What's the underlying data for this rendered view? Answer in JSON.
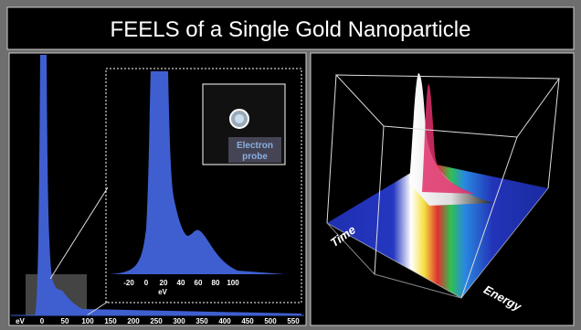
{
  "title": "FEELS of  a Single Gold Nanoparticle",
  "left_panel": {
    "axis_unit": "eV",
    "ticks": [
      0,
      50,
      100,
      150,
      200,
      250,
      300,
      350,
      400,
      450,
      500,
      550
    ],
    "inset": {
      "ticks": [
        -20,
        0,
        20,
        40,
        60,
        80,
        100
      ],
      "axis_unit": "eV",
      "photo_label": [
        "Electron",
        "probe"
      ]
    }
  },
  "right_panel": {
    "axis_labels": [
      "Time",
      "Energy"
    ]
  }
}
